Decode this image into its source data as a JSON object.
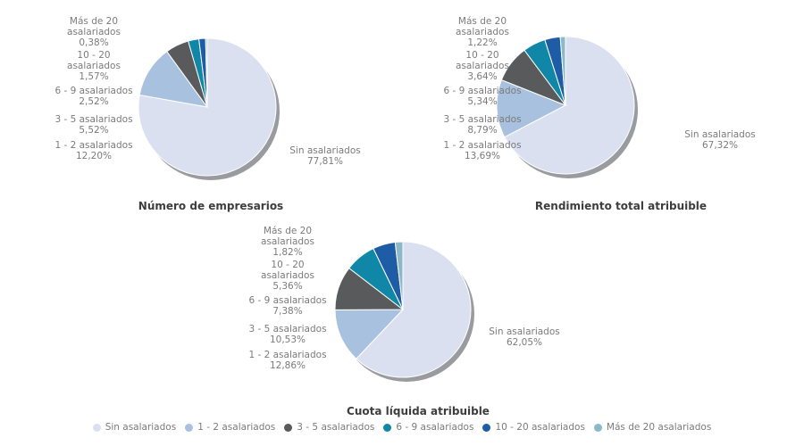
{
  "page": {
    "background": "#ffffff"
  },
  "palette": {
    "sin_asalariados": "#dbe0f1",
    "asal_1_2": "#a7c1df",
    "asal_3_5": "#595a5c",
    "asal_6_9": "#1187a7",
    "asal_10_20": "#1e5ca5",
    "asal_mas_20": "#8cb9c8",
    "shadow": "#9a9b9f",
    "label_text": "#7b7b7b",
    "title_text": "#3d3d3d"
  },
  "legend": {
    "position": "bottom",
    "items": [
      {
        "label": "Sin asalariados",
        "color": "#dbe0f1"
      },
      {
        "label": "1 - 2 asalariados",
        "color": "#a7c1df"
      },
      {
        "label": "3 - 5 asalariados",
        "color": "#595a5c"
      },
      {
        "label": "6 - 9 asalariados",
        "color": "#1187a7"
      },
      {
        "label": "10 - 20 asalariados",
        "color": "#1e5ca5"
      },
      {
        "label": "Más de 20 asalariados",
        "color": "#8cb9c8"
      }
    ]
  },
  "chart_data": [
    {
      "type": "pie",
      "title": "Número de empresarios",
      "categories": [
        "Sin asalariados",
        "1 - 2 asalariados",
        "3 - 5 asalariados",
        "6 - 9 asalariados",
        "10 - 20 asalariados",
        "Más de 20 asalariados"
      ],
      "values": [
        77.81,
        12.2,
        5.52,
        2.52,
        1.57,
        0.38
      ],
      "colors": [
        "#dbe0f1",
        "#a7c1df",
        "#595a5c",
        "#1187a7",
        "#1e5ca5",
        "#8cb9c8"
      ],
      "start_angle_deg": 0,
      "direction": "clockwise",
      "left_labels": [
        {
          "name": "Más de 20\nasalariados",
          "pct": "0,38%"
        },
        {
          "name": "10 - 20\nasalariados",
          "pct": "1,57%"
        },
        {
          "name": "6 - 9 asalariados",
          "pct": "2,52%"
        },
        {
          "name": "3 - 5 asalariados",
          "pct": "5,52%"
        },
        {
          "name": "1 - 2 asalariados",
          "pct": "12,20%"
        }
      ],
      "right_label": {
        "name": "Sin asalariados",
        "pct": "77,81%"
      }
    },
    {
      "type": "pie",
      "title": "Rendimiento total atribuible",
      "categories": [
        "Sin asalariados",
        "1 - 2 asalariados",
        "3 - 5 asalariados",
        "6 - 9 asalariados",
        "10 - 20 asalariados",
        "Más de 20 asalariados"
      ],
      "values": [
        67.32,
        13.69,
        8.79,
        5.34,
        3.64,
        1.22
      ],
      "colors": [
        "#dbe0f1",
        "#a7c1df",
        "#595a5c",
        "#1187a7",
        "#1e5ca5",
        "#8cb9c8"
      ],
      "start_angle_deg": 0,
      "direction": "clockwise",
      "left_labels": [
        {
          "name": "Más de 20\nasalariados",
          "pct": "1,22%"
        },
        {
          "name": "10 - 20\nasalariados",
          "pct": "3,64%"
        },
        {
          "name": "6 - 9 asalariados",
          "pct": "5,34%"
        },
        {
          "name": "3 - 5 asalariados",
          "pct": "8,79%"
        },
        {
          "name": "1 - 2 asalariados",
          "pct": "13,69%"
        }
      ],
      "right_label": {
        "name": "Sin asalariados",
        "pct": "67,32%"
      }
    },
    {
      "type": "pie",
      "title": "Cuota líquida atribuible",
      "categories": [
        "Sin asalariados",
        "1 - 2 asalariados",
        "3 - 5 asalariados",
        "6 - 9 asalariados",
        "10 - 20 asalariados",
        "Más de 20 asalariados"
      ],
      "values": [
        62.05,
        12.86,
        10.53,
        7.38,
        5.36,
        1.82
      ],
      "colors": [
        "#dbe0f1",
        "#a7c1df",
        "#595a5c",
        "#1187a7",
        "#1e5ca5",
        "#8cb9c8"
      ],
      "start_angle_deg": 0,
      "direction": "clockwise",
      "left_labels": [
        {
          "name": "Más de 20\nasalariados",
          "pct": "1,82%"
        },
        {
          "name": "10 - 20\nasalariados",
          "pct": "5,36%"
        },
        {
          "name": "6 - 9 asalariados",
          "pct": "7,38%"
        },
        {
          "name": "3 - 5 asalariados",
          "pct": "10,53%"
        },
        {
          "name": "1 - 2 asalariados",
          "pct": "12,86%"
        }
      ],
      "right_label": {
        "name": "Sin asalariados",
        "pct": "62,05%"
      }
    }
  ]
}
